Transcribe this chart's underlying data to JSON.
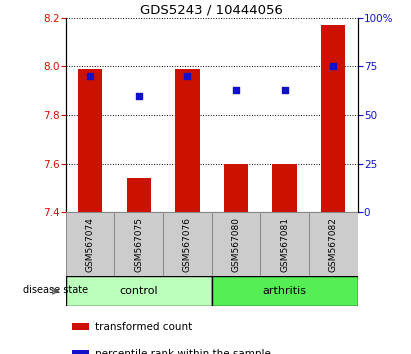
{
  "title": "GDS5243 / 10444056",
  "samples": [
    "GSM567074",
    "GSM567075",
    "GSM567076",
    "GSM567080",
    "GSM567081",
    "GSM567082"
  ],
  "red_values": [
    7.99,
    7.54,
    7.99,
    7.6,
    7.6,
    8.17
  ],
  "blue_percentiles": [
    70,
    60,
    70,
    63,
    63,
    75
  ],
  "ylim_left": [
    7.4,
    8.2
  ],
  "ylim_right": [
    0,
    100
  ],
  "yticks_left": [
    7.4,
    7.6,
    7.8,
    8.0,
    8.2
  ],
  "yticks_right": [
    0,
    25,
    50,
    75,
    100
  ],
  "ytick_labels_right": [
    "0",
    "25",
    "50",
    "75",
    "100%"
  ],
  "bar_color": "#cc1100",
  "dot_color": "#1111cc",
  "bar_bottom": 7.4,
  "control_color": "#bbffbb",
  "arthritis_color": "#55ee55",
  "gray_box_color": "#cccccc",
  "tick_color_left": "#cc1100",
  "tick_color_right": "#1111cc",
  "legend_items": [
    "transformed count",
    "percentile rank within the sample"
  ],
  "disease_state_label": "disease state"
}
